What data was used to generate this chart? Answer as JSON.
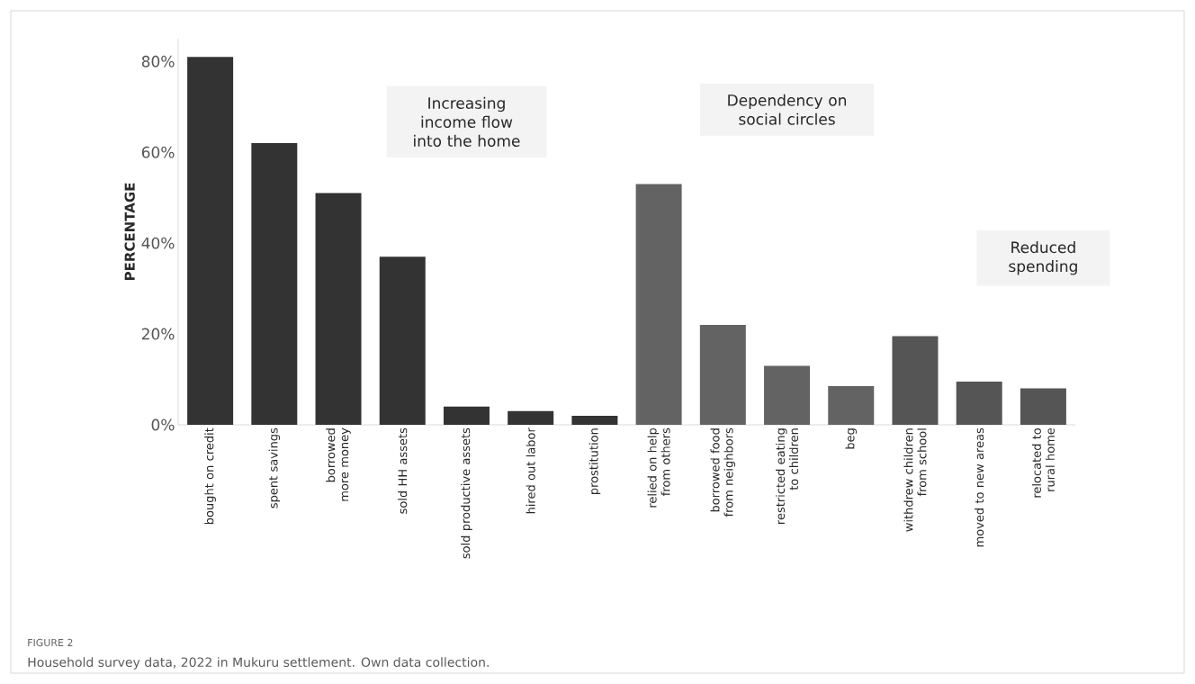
{
  "chart_data": {
    "type": "bar",
    "ylabel": "PERCENTAGE",
    "categories": [
      "bought on credit",
      "spent savings",
      "borrowed more money",
      "sold HH assets",
      "sold productive assets",
      "hired out labor",
      "prostitution",
      "relied on help from others",
      "borrowed food from neighbors",
      "restricted eating to children",
      "beg",
      "withdrew children from school",
      "moved to new areas",
      "relocated to rural home"
    ],
    "values": [
      81,
      62,
      51,
      37,
      4,
      3,
      2,
      53,
      22,
      13,
      8.5,
      19.5,
      9.5,
      8
    ],
    "colors": [
      "#333333",
      "#333333",
      "#333333",
      "#333333",
      "#333333",
      "#333333",
      "#333333",
      "#636363",
      "#636363",
      "#636363",
      "#636363",
      "#555555",
      "#555555",
      "#555555"
    ],
    "ylim": [
      0,
      85
    ],
    "yticks": [
      {
        "value": 0,
        "label": "0%"
      },
      {
        "value": 20,
        "label": "20%"
      },
      {
        "value": 40,
        "label": "40%"
      },
      {
        "value": 60,
        "label": "60%"
      },
      {
        "value": 80,
        "label": "80%"
      }
    ],
    "grid": false,
    "annotations": [
      "Increasing income flow into the home",
      "Dependency on social circles",
      "Reduced spending",
      "FIGURE 2",
      "Household survey data, 2022 in Mukuru settlement. Own data collection."
    ]
  }
}
